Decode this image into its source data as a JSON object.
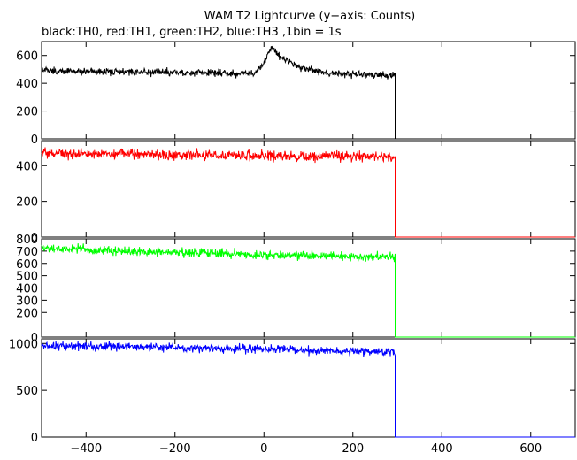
{
  "chart_data": {
    "type": "line",
    "title": "WAM T2 Lightcurve (y−axis: Counts)",
    "subtitle": "black:TH0, red:TH1, green:TH2, blue:TH3 ,1bin = 1s",
    "xlim": [
      -500,
      700
    ],
    "x_ticks": [
      -400,
      -200,
      0,
      200,
      400,
      600
    ],
    "x_tick_labels": [
      "−400",
      "−200",
      "0",
      "200",
      "400",
      "600"
    ],
    "data_end_x": 295,
    "grid": false,
    "panels": [
      {
        "name": "TH0",
        "color": "#000000",
        "ylim": [
          0,
          700
        ],
        "y_ticks": [
          0,
          200,
          400,
          600
        ],
        "y_tick_labels": [
          "0",
          "200",
          "400",
          "600"
        ],
        "baseline": [
          [
            -500,
            490
          ],
          [
            -100,
            475
          ],
          [
            0,
            470
          ],
          [
            100,
            465
          ],
          [
            295,
            455
          ]
        ],
        "noise": 18,
        "flare": {
          "peak_x": 20,
          "peak_y": 660,
          "rise": 15,
          "decay": 45
        },
        "after_value": 0
      },
      {
        "name": "TH1",
        "color": "#ff0000",
        "ylim": [
          0,
          540
        ],
        "y_ticks": [
          0,
          200,
          400
        ],
        "y_tick_labels": [
          "0",
          "200",
          "400"
        ],
        "baseline": [
          [
            -500,
            470
          ],
          [
            0,
            455
          ],
          [
            295,
            450
          ]
        ],
        "noise": 20,
        "after_value": 0
      },
      {
        "name": "TH2",
        "color": "#00ff00",
        "ylim": [
          0,
          800
        ],
        "y_ticks": [
          0,
          200,
          300,
          400,
          500,
          600,
          700,
          800
        ],
        "y_tick_labels": [
          "0",
          "200",
          "300",
          "400",
          "500",
          "600",
          "700",
          "800"
        ],
        "baseline": [
          [
            -500,
            720
          ],
          [
            0,
            670
          ],
          [
            295,
            650
          ]
        ],
        "noise": 25,
        "after_value": 0
      },
      {
        "name": "TH3",
        "color": "#0000ff",
        "ylim": [
          0,
          1050
        ],
        "y_ticks": [
          0,
          500,
          1000
        ],
        "y_tick_labels": [
          "0",
          "500",
          "1000"
        ],
        "baseline": [
          [
            -500,
            980
          ],
          [
            0,
            940
          ],
          [
            295,
            905
          ]
        ],
        "noise": 30,
        "after_value": 0
      }
    ]
  }
}
